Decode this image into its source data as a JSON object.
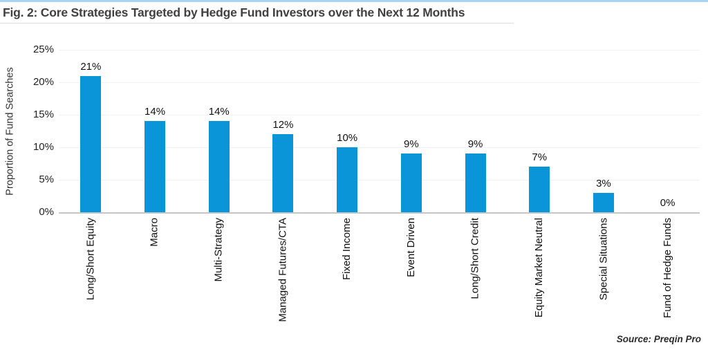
{
  "figure": {
    "title": "Fig. 2: Core Strategies Targeted by Hedge Fund Investors over the Next 12 Months",
    "source": "Source: Preqin Pro"
  },
  "colors": {
    "bar": "#0995d7",
    "top_border": "#a9d3ee",
    "title_text": "#414141",
    "gridline": "#f2f2f2",
    "baseline": "#c6c6c6"
  },
  "chart_data": {
    "type": "bar",
    "title": "Fig. 2: Core Strategies Targeted by Hedge Fund Investors over the Next 12 Months",
    "xlabel": "",
    "ylabel": "Proportion of Fund Searches",
    "categories": [
      "Long/Short Equity",
      "Macro",
      "Multi-Strategy",
      "Managed Futures/CTA",
      "Fixed Income",
      "Event Driven",
      "Long/Short Credit",
      "Equity Market Neutral",
      "Special Situations",
      "Fund of Hedge Funds"
    ],
    "values": [
      21,
      14,
      14,
      12,
      10,
      9,
      9,
      7,
      3,
      0
    ],
    "value_labels": [
      "21%",
      "14%",
      "14%",
      "12%",
      "10%",
      "9%",
      "9%",
      "7%",
      "3%",
      "0%"
    ],
    "yticks": [
      "0%",
      "5%",
      "10%",
      "15%",
      "20%",
      "25%"
    ],
    "ylim": [
      0,
      25
    ],
    "grid": "horizontal",
    "legend_position": "none",
    "bar_color": "#0995d7",
    "source": "Source: Preqin Pro"
  }
}
